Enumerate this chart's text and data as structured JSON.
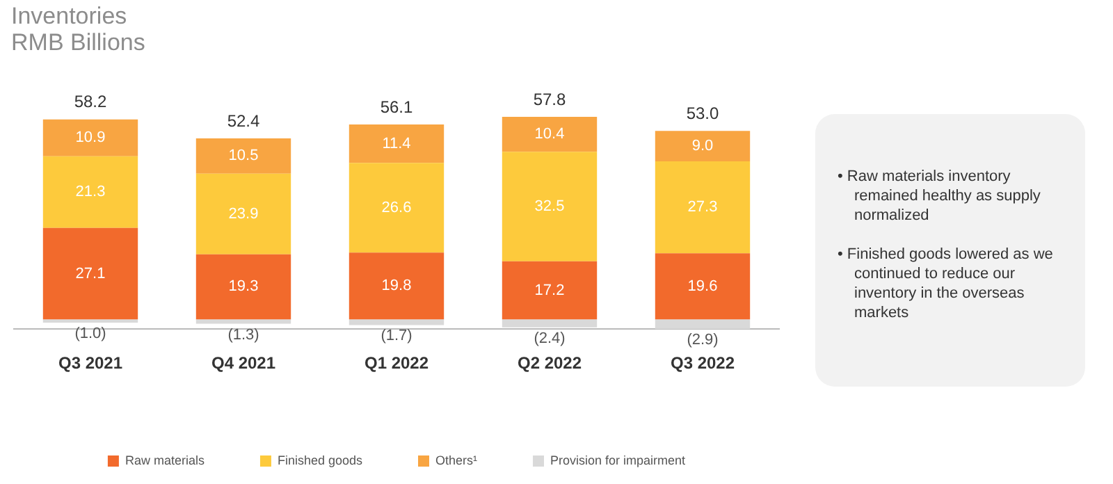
{
  "chart_data": {
    "type": "bar",
    "title": "Inventories",
    "subtitle": "RMB Billions",
    "stacked": true,
    "categories": [
      "Q3 2021",
      "Q4 2021",
      "Q1 2022",
      "Q2 2022",
      "Q3 2022"
    ],
    "series": [
      {
        "name": "Raw materials",
        "color": "#f26a2c",
        "values": [
          27.1,
          19.3,
          19.8,
          17.2,
          19.6
        ],
        "value_labels": [
          "27.1",
          "19.3",
          "19.8",
          "17.2",
          "19.6"
        ]
      },
      {
        "name": "Finished goods",
        "color": "#fdca3c",
        "values": [
          21.3,
          23.9,
          26.6,
          32.5,
          27.3
        ],
        "value_labels": [
          "21.3",
          "23.9",
          "26.6",
          "32.5",
          "27.3"
        ]
      },
      {
        "name": "Others¹",
        "color": "#f8a542",
        "values": [
          10.9,
          10.5,
          11.4,
          10.4,
          9.0
        ],
        "value_labels": [
          "10.9",
          "10.5",
          "11.4",
          "10.4",
          "9.0"
        ]
      },
      {
        "name": "Provision for impairment",
        "color": "#d9d9d9",
        "values": [
          -1.0,
          -1.3,
          -1.7,
          -2.4,
          -2.9
        ],
        "value_labels": [
          "(1.0)",
          "(1.3)",
          "(1.7)",
          "(2.4)",
          "(2.9)"
        ]
      }
    ],
    "totals": [
      "58.2",
      "52.4",
      "56.1",
      "57.8",
      "53.0"
    ],
    "legend": "bottom",
    "grid": false,
    "annotations": [
      "• Raw materials inventory remained healthy as supply normalized",
      "• Finished goods lowered as we continued to reduce our inventory in the overseas markets"
    ]
  }
}
